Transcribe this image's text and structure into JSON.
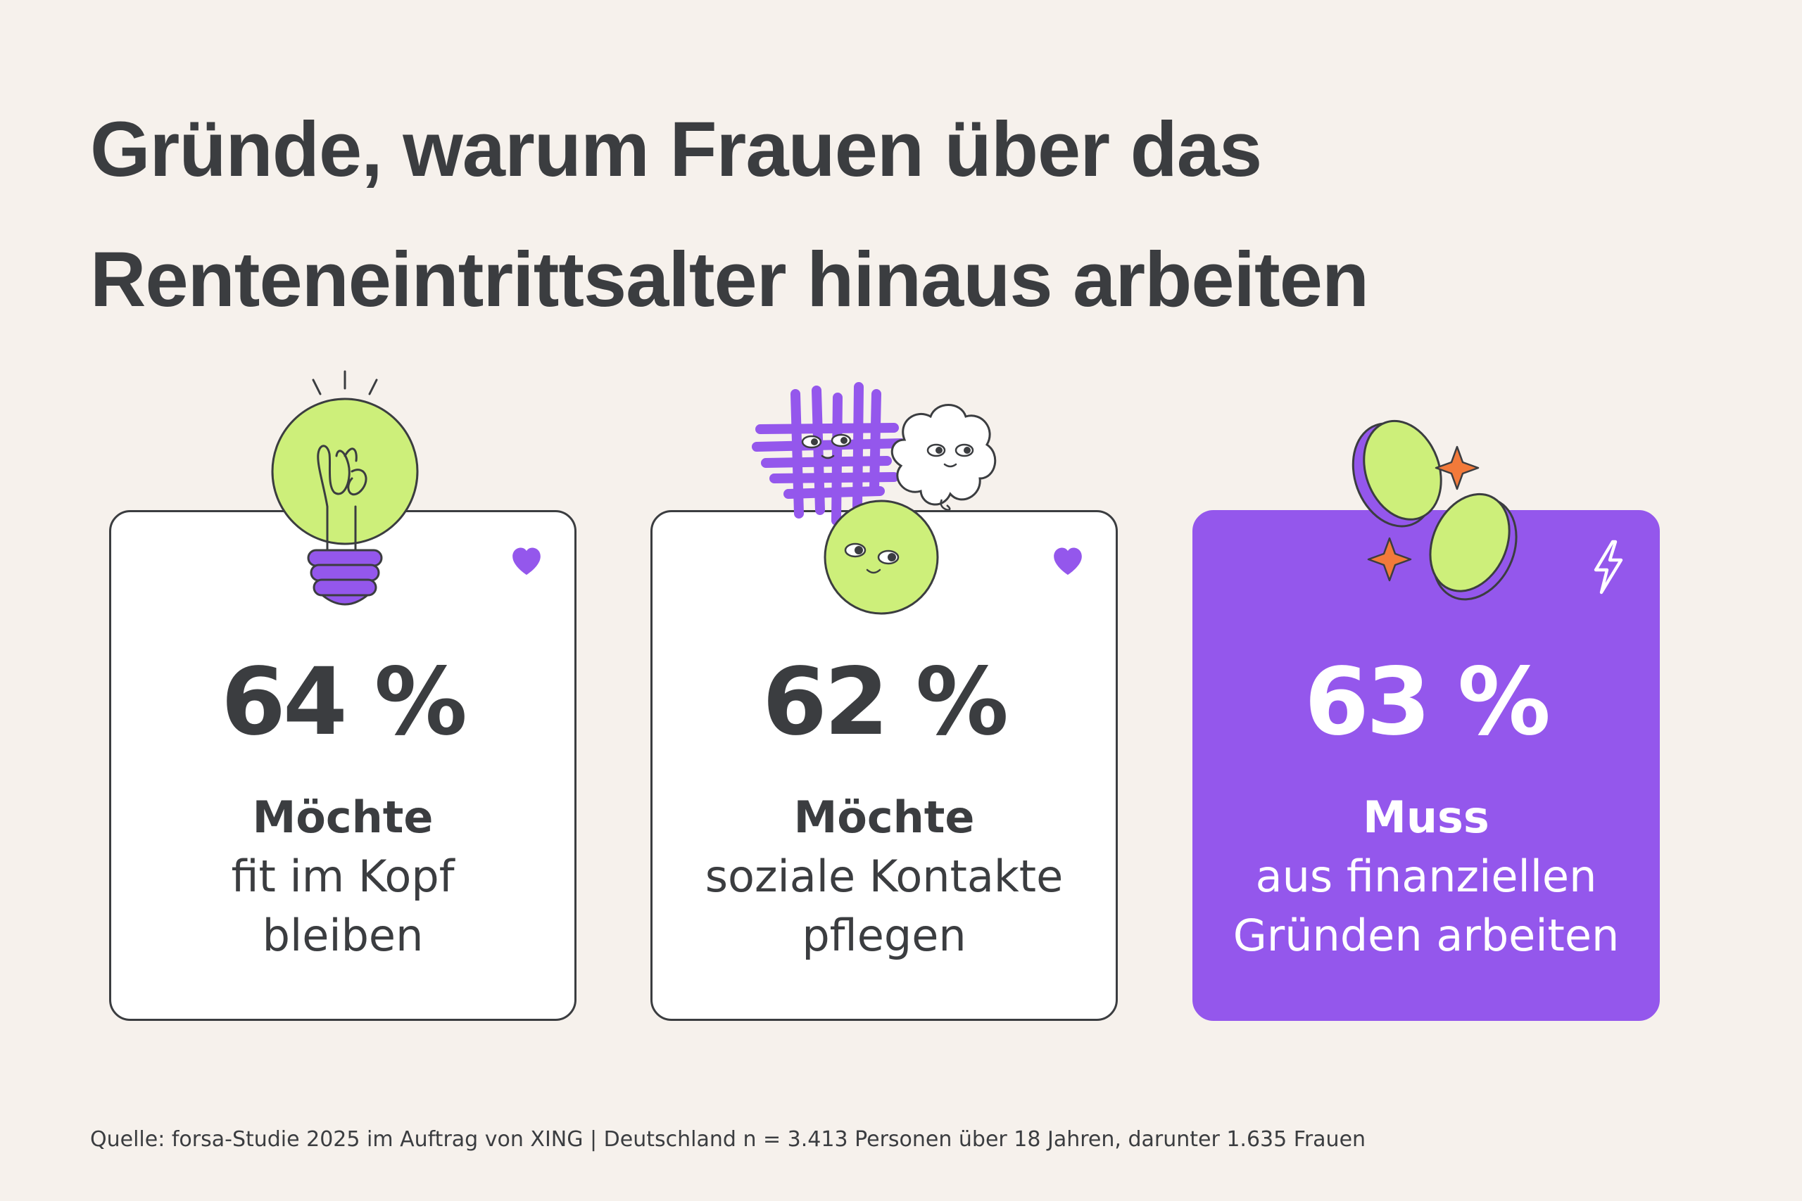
{
  "title": {
    "line1": "Gründe, warum Frauen über das",
    "line2": "Renteneintrittsalter hinaus arbeiten"
  },
  "cards": [
    {
      "percent": "64 %",
      "value": 64,
      "strong": "Möchte",
      "line1": "fit im Kopf",
      "line2": "bleiben",
      "icon": "heart-icon",
      "illustration": "lightbulb-icon"
    },
    {
      "percent": "62 %",
      "value": 62,
      "strong": "Möchte",
      "line1": "soziale Kontakte",
      "line2": "pflegen",
      "icon": "heart-icon",
      "illustration": "social-characters-icon"
    },
    {
      "percent": "63 %",
      "value": 63,
      "strong": "Muss",
      "line1": "aus finanziellen",
      "line2": "Gründen arbeiten",
      "icon": "lightning-icon",
      "illustration": "coins-icon"
    }
  ],
  "source": "Quelle: forsa-Studie 2025 im Auftrag von XING | Deutschland n = 3.413 Personen über 18 Jahren, darunter 1.635 Frauen",
  "colors": {
    "background": "#f6f1ec",
    "text": "#3b3d40",
    "accent_purple": "#9457ec",
    "accent_green": "#cdef7a",
    "accent_orange": "#f27a3a",
    "card_white": "#ffffff"
  }
}
